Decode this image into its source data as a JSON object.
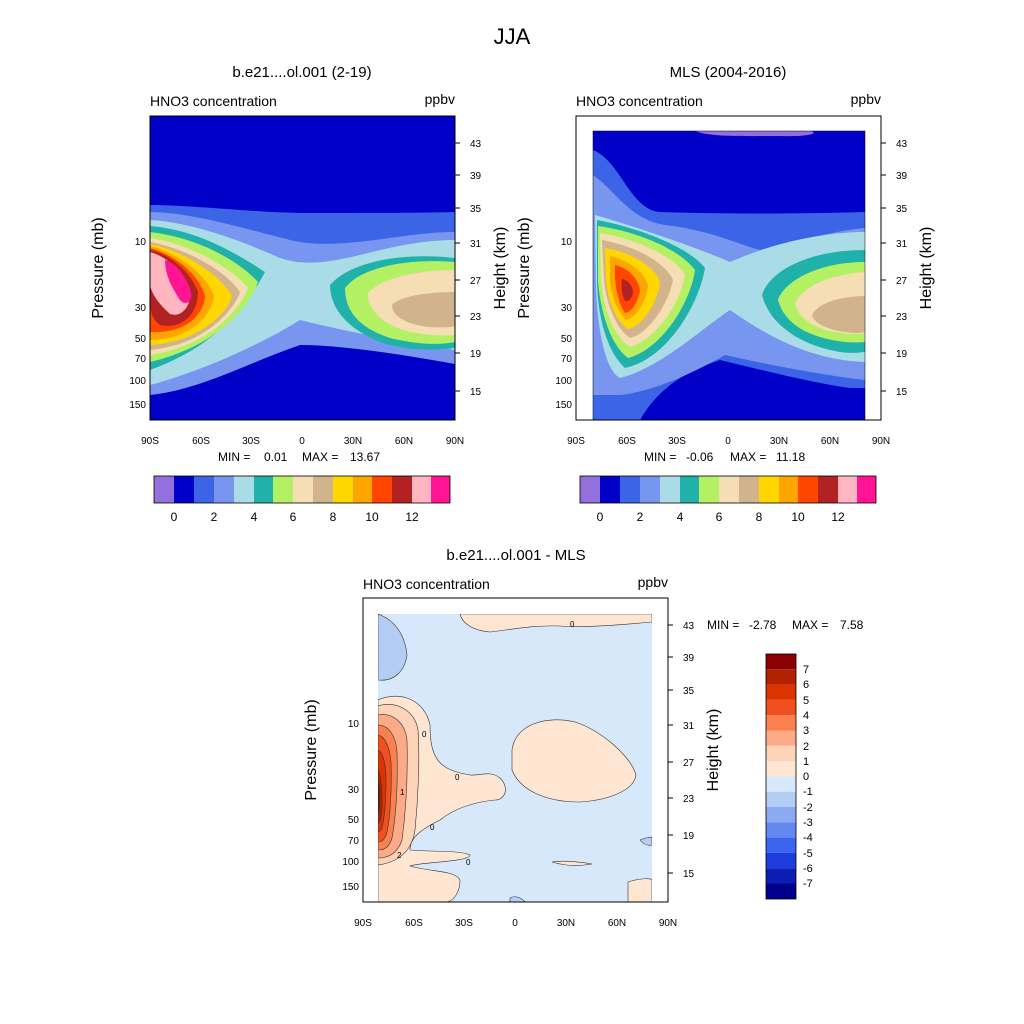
{
  "figure_title": "JJA",
  "chart_data": [
    {
      "type": "contour",
      "panel": "model",
      "title": "b.e21....ol.001 (2-19)",
      "left_label": "HNO3 concentration",
      "right_label": "ppbv",
      "xlabel": "",
      "ylabel_left": "Pressure (mb)",
      "ylabel_right": "Height (km)",
      "x_ticks": [
        "90S",
        "60S",
        "30S",
        "0",
        "30N",
        "60N",
        "90N"
      ],
      "pressure_ticks": [
        "10",
        "30",
        "50",
        "70",
        "100",
        "150"
      ],
      "height_ticks": [
        "43",
        "39",
        "35",
        "31",
        "27",
        "23",
        "19",
        "15"
      ],
      "min_label": "MIN =",
      "min_value": "0.01",
      "max_label": "MAX =",
      "max_value": "13.67",
      "colorbar_ticks": [
        "0",
        "2",
        "4",
        "6",
        "8",
        "10",
        "12"
      ]
    },
    {
      "type": "contour",
      "panel": "observations",
      "title": "MLS (2004-2016)",
      "left_label": "HNO3 concentration",
      "right_label": "ppbv",
      "xlabel": "",
      "ylabel_left": "Pressure (mb)",
      "ylabel_right": "Height (km)",
      "x_ticks": [
        "90S",
        "60S",
        "30S",
        "0",
        "30N",
        "60N",
        "90N"
      ],
      "pressure_ticks": [
        "10",
        "30",
        "50",
        "70",
        "100",
        "150"
      ],
      "height_ticks": [
        "43",
        "39",
        "35",
        "31",
        "27",
        "23",
        "19",
        "15"
      ],
      "min_label": "MIN =",
      "min_value": "-0.06",
      "max_label": "MAX =",
      "max_value": "11.18",
      "colorbar_ticks": [
        "0",
        "2",
        "4",
        "6",
        "8",
        "10",
        "12"
      ]
    },
    {
      "type": "contour",
      "panel": "difference",
      "title": "b.e21....ol.001 - MLS",
      "left_label": "HNO3 concentration",
      "right_label": "ppbv",
      "xlabel": "",
      "ylabel_left": "Pressure (mb)",
      "ylabel_right": "Height (km)",
      "x_ticks": [
        "90S",
        "60S",
        "30S",
        "0",
        "30N",
        "60N",
        "90N"
      ],
      "pressure_ticks": [
        "10",
        "30",
        "50",
        "70",
        "100",
        "150"
      ],
      "height_ticks": [
        "43",
        "39",
        "35",
        "31",
        "27",
        "23",
        "19",
        "15"
      ],
      "min_label": "MIN =",
      "min_value": "-2.78",
      "max_label": "MAX =",
      "max_value": "7.58",
      "contour_labels": [
        "0",
        "0",
        "0",
        "0",
        "0",
        "1",
        "2"
      ],
      "colorbar_ticks": [
        "7",
        "6",
        "5",
        "4",
        "3",
        "2",
        "1",
        "0",
        "-1",
        "-2",
        "-3",
        "-4",
        "-5",
        "-6",
        "-7"
      ]
    }
  ],
  "colors": {
    "abs_levels": [
      "#9370db",
      "#0000c8",
      "#3c64e6",
      "#7896f0",
      "#a9dce6",
      "#20b2aa",
      "#b4f064",
      "#f5deb3",
      "#d2b48c",
      "#ffd700",
      "#ffa500",
      "#ff4500",
      "#b22222",
      "#ffb6c1",
      "#ff1493"
    ],
    "diff_levels": [
      "#8b0000",
      "#b22200",
      "#dd3300",
      "#f05020",
      "#fa8050",
      "#fcaa88",
      "#fdd4b8",
      "#ffe6d2",
      "#d7e8fa",
      "#b4cdf5",
      "#8caaf2",
      "#6487f0",
      "#3c64f0",
      "#1e3cdc",
      "#0a1eb4",
      "#00008b"
    ]
  }
}
